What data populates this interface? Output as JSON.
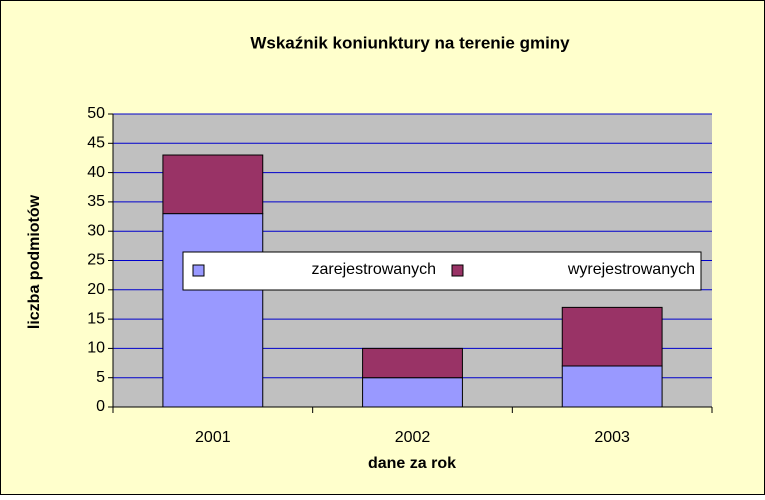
{
  "chart_data": {
    "type": "stacked_bar",
    "title": "Wskaźnik koniunktury na terenie gminy",
    "x_label": "dane za rok",
    "y_label": "liczba podmiotów",
    "categories": [
      "2001",
      "2002",
      "2003"
    ],
    "series": [
      {
        "name": "zarejestrowanych",
        "color": "#9999ff",
        "values": [
          33,
          5,
          7
        ]
      },
      {
        "name": "wyrejestrowanych",
        "color": "#993366",
        "values": [
          10,
          5,
          10
        ]
      }
    ],
    "ylim": [
      0,
      50
    ],
    "yticks": [
      0,
      5,
      10,
      15,
      20,
      25,
      30,
      35,
      40,
      45,
      50
    ],
    "grid": true,
    "legend": "center"
  }
}
